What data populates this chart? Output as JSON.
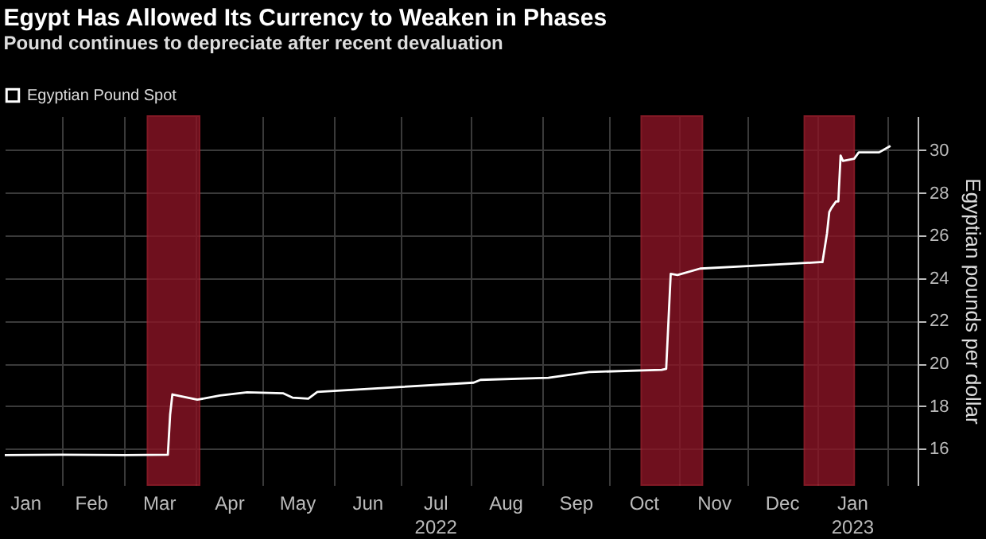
{
  "chart_data": {
    "type": "line",
    "title": "Egypt Has Allowed Its Currency to Weaken in Phases",
    "subtitle": "Pound continues to depreciate after recent devaluation",
    "ylabel": "Egyptian pounds per dollar",
    "legend": "top left",
    "grid": true,
    "marker": "none",
    "line_style": "solid",
    "xlim": [
      "2022-01-07",
      "2023-02-14"
    ],
    "ylim": [
      14.3,
      31.6
    ],
    "yticks": [
      16,
      18,
      20,
      22,
      24,
      26,
      28,
      30
    ],
    "xticks": [
      {
        "value": "2022-01-16",
        "label": "Jan"
      },
      {
        "value": "2022-02-01",
        "label": null
      },
      {
        "value": "2022-02-14",
        "label": "Feb"
      },
      {
        "value": "2022-03-01",
        "label": null
      },
      {
        "value": "2022-03-16",
        "label": "Mar"
      },
      {
        "value": "2022-04-01",
        "label": null
      },
      {
        "value": "2022-04-16",
        "label": "Apr"
      },
      {
        "value": "2022-05-01",
        "label": null
      },
      {
        "value": "2022-05-16",
        "label": "May"
      },
      {
        "value": "2022-06-01",
        "label": null
      },
      {
        "value": "2022-06-16",
        "label": "Jun"
      },
      {
        "value": "2022-07-01",
        "label": null
      },
      {
        "value": "2022-07-16",
        "label": "Jul\n2022"
      },
      {
        "value": "2022-08-01",
        "label": null
      },
      {
        "value": "2022-08-16",
        "label": "Aug"
      },
      {
        "value": "2022-09-01",
        "label": null
      },
      {
        "value": "2022-09-16",
        "label": "Sep"
      },
      {
        "value": "2022-10-01",
        "label": null
      },
      {
        "value": "2022-10-16",
        "label": "Oct"
      },
      {
        "value": "2022-11-01",
        "label": null
      },
      {
        "value": "2022-11-16",
        "label": "Nov"
      },
      {
        "value": "2022-12-01",
        "label": null
      },
      {
        "value": "2022-12-16",
        "label": "Dec"
      },
      {
        "value": "2023-01-01",
        "label": null
      },
      {
        "value": "2023-01-16",
        "label": "Jan\n2023"
      },
      {
        "value": "2023-02-01",
        "label": null
      }
    ],
    "bands": [
      {
        "axis": "x",
        "from": "2022-03-11",
        "to": "2022-04-03",
        "label": null,
        "color": "#8b1526"
      },
      {
        "axis": "x",
        "from": "2022-10-15",
        "to": "2022-11-11",
        "label": null,
        "color": "#8b1526"
      },
      {
        "axis": "x",
        "from": "2022-12-26",
        "to": "2023-01-17",
        "label": null,
        "color": "#8b1526"
      }
    ],
    "series": [
      {
        "name": "Egyptian Pound Spot",
        "color": "#ffffff",
        "x": [
          "2022-01-07",
          "2022-02-01",
          "2022-03-01",
          "2022-03-20",
          "2022-03-21",
          "2022-03-22",
          "2022-04-02",
          "2022-04-12",
          "2022-04-24",
          "2022-05-10",
          "2022-05-14",
          "2022-05-21",
          "2022-05-25",
          "2022-07-01",
          "2022-08-02",
          "2022-08-05",
          "2022-09-04",
          "2022-09-22",
          "2022-10-24",
          "2022-10-26",
          "2022-10-28",
          "2022-10-31",
          "2022-11-10",
          "2022-12-01",
          "2023-01-02",
          "2023-01-03",
          "2023-01-05",
          "2023-01-06",
          "2023-01-07",
          "2023-01-09",
          "2023-01-10",
          "2023-01-11",
          "2023-01-12",
          "2023-01-17",
          "2023-01-19",
          "2023-01-28",
          "2023-02-02"
        ],
        "values": [
          15.7,
          15.72,
          15.7,
          15.72,
          17.6,
          18.55,
          18.3,
          18.5,
          18.65,
          18.6,
          18.4,
          18.35,
          18.67,
          18.9,
          19.1,
          19.23,
          19.33,
          19.6,
          19.7,
          19.75,
          24.2,
          24.15,
          24.45,
          24.57,
          24.75,
          24.75,
          26.1,
          27.1,
          27.3,
          27.6,
          27.6,
          29.75,
          29.5,
          29.6,
          29.9,
          29.9,
          30.2
        ]
      }
    ]
  }
}
